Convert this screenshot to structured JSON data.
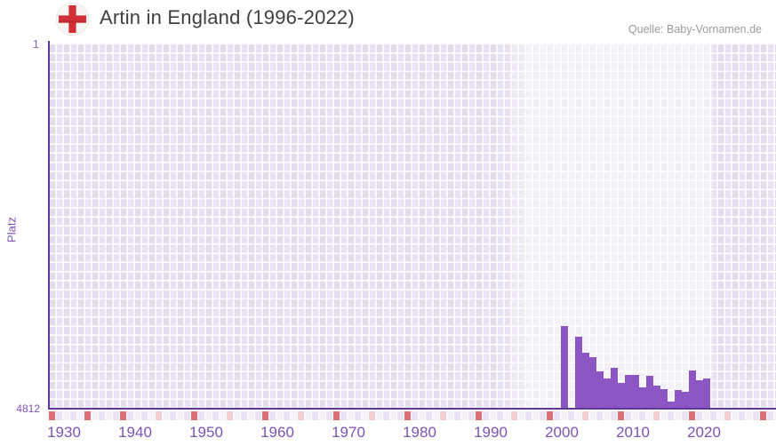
{
  "header": {
    "title": "Artin in England (1996-2022)",
    "source": "Quelle: Baby-Vornamen.de",
    "flag_icon": "england-flag-icon"
  },
  "chart_data": {
    "type": "bar",
    "title": "Artin in England (1996-2022)",
    "ylabel": "Platz",
    "y_axis": {
      "top_label": "1",
      "bottom_label": "4812",
      "min": 1,
      "max": 4812,
      "inverted": true
    },
    "x_ticks": [
      "1930",
      "1940",
      "1950",
      "1960",
      "1970",
      "1980",
      "1990",
      "2000",
      "2010",
      "2020"
    ],
    "x_start_year": 1930,
    "highlight_period": [
      1996,
      2022
    ],
    "grid": true,
    "legend": "none",
    "series": [
      {
        "name": "Platz",
        "points": [
          {
            "year": 2000,
            "platz": 3729
          },
          {
            "year": 2002,
            "platz": 3866
          },
          {
            "year": 2003,
            "platz": 4087
          },
          {
            "year": 2004,
            "platz": 4140
          },
          {
            "year": 2005,
            "platz": 4334
          },
          {
            "year": 2006,
            "platz": 4420
          },
          {
            "year": 2007,
            "platz": 4278
          },
          {
            "year": 2008,
            "platz": 4478
          },
          {
            "year": 2009,
            "platz": 4374
          },
          {
            "year": 2010,
            "platz": 4374
          },
          {
            "year": 2011,
            "platz": 4546
          },
          {
            "year": 2012,
            "platz": 4391
          },
          {
            "year": 2013,
            "platz": 4516
          },
          {
            "year": 2014,
            "platz": 4562
          },
          {
            "year": 2015,
            "platz": 4731
          },
          {
            "year": 2016,
            "platz": 4574
          },
          {
            "year": 2017,
            "platz": 4602
          },
          {
            "year": 2018,
            "platz": 4323
          },
          {
            "year": 2019,
            "platz": 4446
          },
          {
            "year": 2020,
            "platz": 4424
          }
        ]
      }
    ]
  },
  "colors": {
    "bar": "#8c57c5",
    "axis": "#5b3a96",
    "tick_label": "#7d53b3",
    "flag_red": "#d13038",
    "flag_white": "#f7f5f2",
    "strip_red": "#dd6e78",
    "strip_pink": "#f3ccd6",
    "strip_lavender": "#e9e3f3",
    "strip_light": "#f5f2fa",
    "title_text": "#3f3f3f",
    "source_text": "#9b9b9b"
  }
}
